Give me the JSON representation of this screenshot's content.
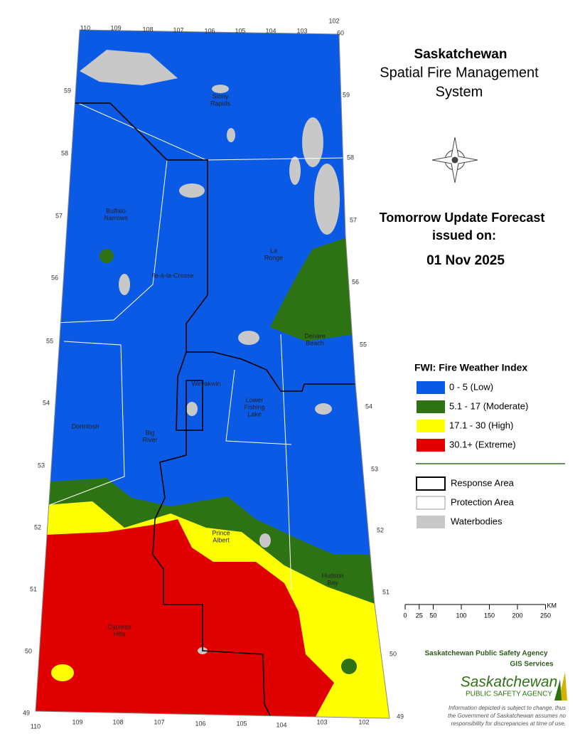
{
  "header": {
    "title": "Saskatchewan",
    "subtitle": [
      "Spatial Fire Management",
      "System"
    ]
  },
  "forecast": {
    "heading": [
      "Tomorrow Update Forecast",
      "issued on:"
    ],
    "date": "01 Nov 2025"
  },
  "legend": {
    "title": "FWI: Fire Weather Index",
    "items": [
      {
        "label": "0 - 5 (Low)",
        "color": "#0a5ae6"
      },
      {
        "label": "5.1 - 17 (Moderate)",
        "color": "#2e7313"
      },
      {
        "label": "17.1 - 30 (High)",
        "color": "#ffff00"
      },
      {
        "label": "30.1+ (Extreme)",
        "color": "#e00000"
      }
    ],
    "boundaries": [
      "Response Area",
      "Protection Area",
      "Waterbodies"
    ]
  },
  "scale": {
    "unit": "KM",
    "ticks": [
      0,
      25,
      50,
      100,
      150,
      200,
      250
    ]
  },
  "agency": {
    "name": "Saskatchewan Public Safety Agency",
    "unit": "GIS  Services",
    "logo": [
      "Saskatchewan",
      "PUBLIC SAFETY AGENCY"
    ],
    "disclaimer": [
      "Information depicted is subject to change, thus",
      "the Government of Saskatchewan assumes no",
      "responsibility for discrepancies at time of use."
    ]
  },
  "places": [
    {
      "label": [
        "Stony",
        "Rapids"
      ]
    },
    {
      "label": [
        "Buffalo",
        "Narrows"
      ]
    },
    {
      "label": [
        "La",
        "Ronge"
      ]
    },
    {
      "label": [
        "Ile-à-la-Crosse"
      ]
    },
    {
      "label": [
        "Denare",
        "Beach"
      ]
    },
    {
      "label": [
        "Weyakwin"
      ]
    },
    {
      "label": [
        "Lower",
        "Fishing",
        "Lake"
      ]
    },
    {
      "label": [
        "Dorintosh"
      ]
    },
    {
      "label": [
        "Big",
        "River"
      ]
    },
    {
      "label": [
        "Prince",
        "Albert"
      ]
    },
    {
      "label": [
        "Hudson",
        "Bay"
      ]
    },
    {
      "label": [
        "Cypress",
        "Hills"
      ]
    }
  ],
  "grid_labels": {
    "top": [
      "110",
      "109",
      "108",
      "107",
      "106",
      "105",
      "104",
      "103",
      "102",
      "60"
    ],
    "bottom": [
      "110",
      "109",
      "108",
      "107",
      "106",
      "105",
      "104",
      "103",
      "102"
    ],
    "left": [
      "59",
      "58",
      "57",
      "56",
      "55",
      "54",
      "53",
      "52",
      "51",
      "50",
      "49"
    ],
    "right": [
      "59",
      "58",
      "57",
      "56",
      "55",
      "54",
      "53",
      "52",
      "51",
      "50",
      "49"
    ]
  }
}
